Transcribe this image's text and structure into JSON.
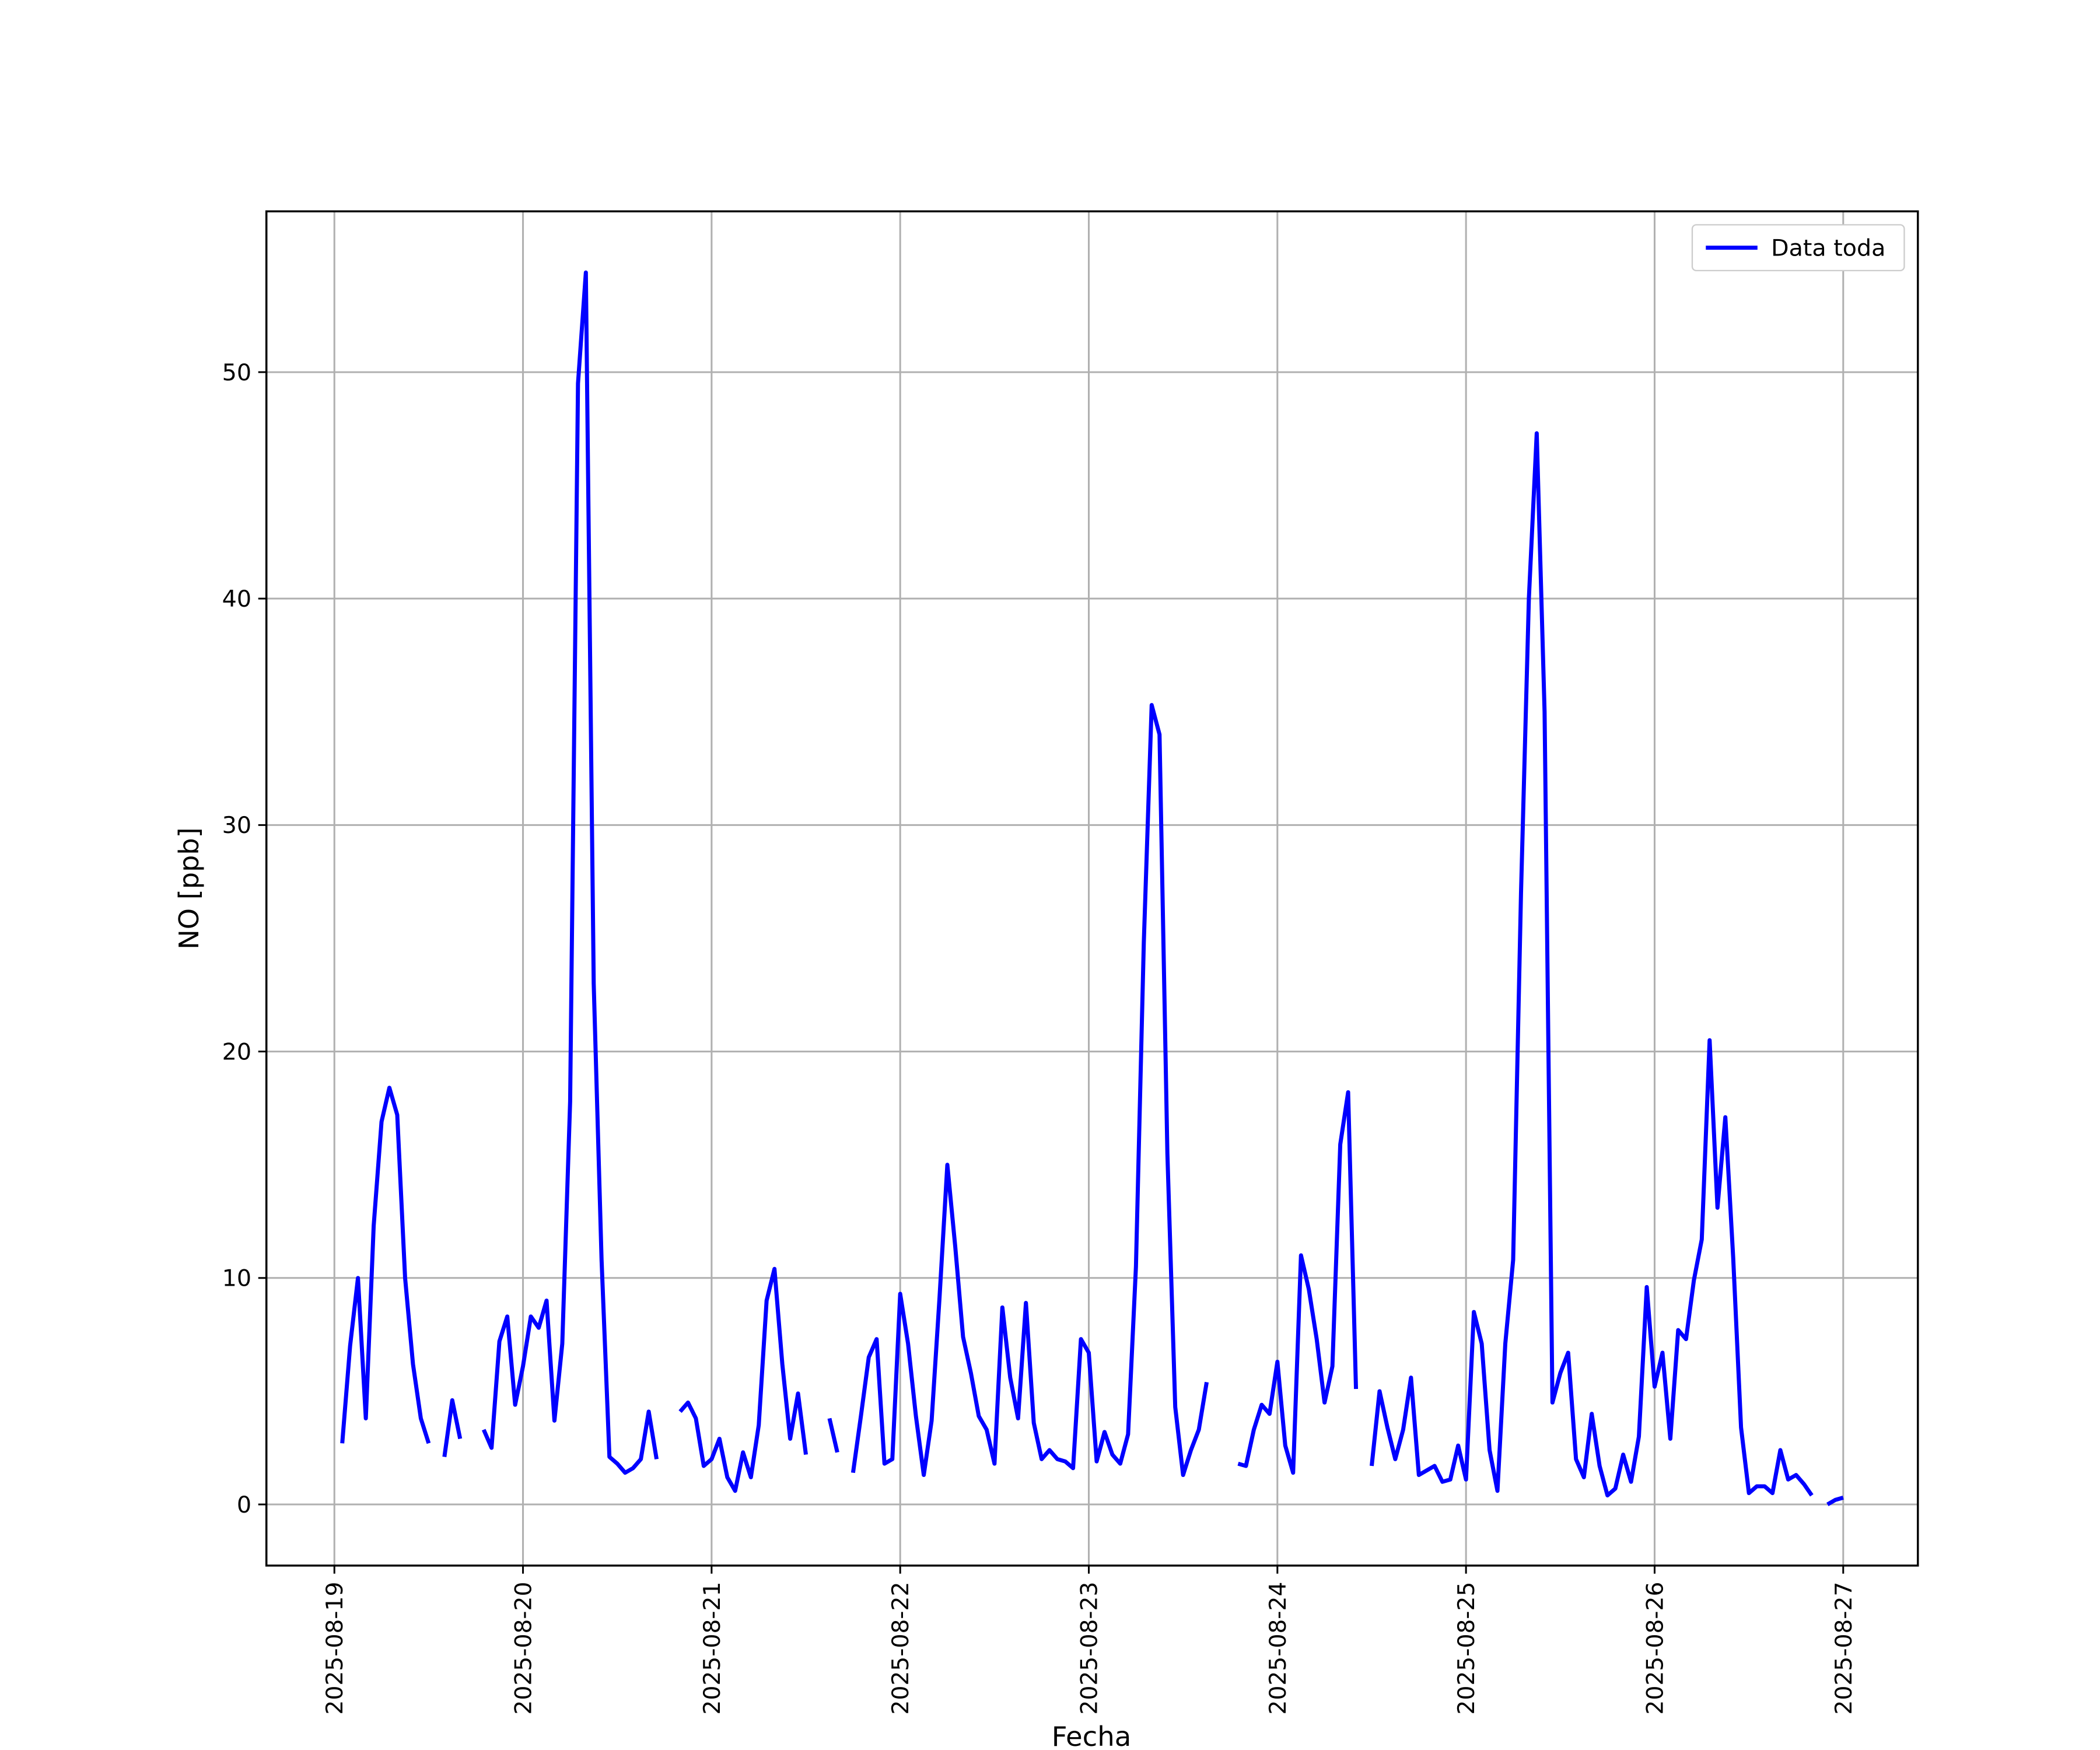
{
  "chart_data": {
    "type": "line",
    "xlabel": "Fecha",
    "ylabel": "NO [ppb]",
    "x": [
      "2025-08-19 01:00",
      "2025-08-19 02:00",
      "2025-08-19 03:00",
      "2025-08-19 04:00",
      "2025-08-19 05:00",
      "2025-08-19 06:00",
      "2025-08-19 07:00",
      "2025-08-19 08:00",
      "2025-08-19 09:00",
      "2025-08-19 10:00",
      "2025-08-19 11:00",
      "2025-08-19 12:00",
      "2025-08-19 13:00",
      "2025-08-19 14:00",
      "2025-08-19 15:00",
      "2025-08-19 16:00",
      "2025-08-19 17:00",
      "2025-08-19 18:00",
      "2025-08-19 19:00",
      "2025-08-19 20:00",
      "2025-08-19 21:00",
      "2025-08-19 22:00",
      "2025-08-19 23:00",
      "2025-08-20 00:00",
      "2025-08-20 01:00",
      "2025-08-20 02:00",
      "2025-08-20 03:00",
      "2025-08-20 04:00",
      "2025-08-20 05:00",
      "2025-08-20 06:00",
      "2025-08-20 07:00",
      "2025-08-20 08:00",
      "2025-08-20 09:00",
      "2025-08-20 10:00",
      "2025-08-20 11:00",
      "2025-08-20 12:00",
      "2025-08-20 13:00",
      "2025-08-20 14:00",
      "2025-08-20 15:00",
      "2025-08-20 16:00",
      "2025-08-20 17:00",
      "2025-08-20 18:00",
      "2025-08-20 19:00",
      "2025-08-20 20:00",
      "2025-08-20 21:00",
      "2025-08-20 22:00",
      "2025-08-20 23:00",
      "2025-08-21 00:00",
      "2025-08-21 01:00",
      "2025-08-21 02:00",
      "2025-08-21 03:00",
      "2025-08-21 04:00",
      "2025-08-21 05:00",
      "2025-08-21 06:00",
      "2025-08-21 07:00",
      "2025-08-21 08:00",
      "2025-08-21 09:00",
      "2025-08-21 10:00",
      "2025-08-21 11:00",
      "2025-08-21 12:00",
      "2025-08-21 13:00",
      "2025-08-21 14:00",
      "2025-08-21 15:00",
      "2025-08-21 16:00",
      "2025-08-21 17:00",
      "2025-08-21 18:00",
      "2025-08-21 19:00",
      "2025-08-21 20:00",
      "2025-08-21 21:00",
      "2025-08-21 22:00",
      "2025-08-21 23:00",
      "2025-08-22 00:00",
      "2025-08-22 01:00",
      "2025-08-22 02:00",
      "2025-08-22 03:00",
      "2025-08-22 04:00",
      "2025-08-22 05:00",
      "2025-08-22 06:00",
      "2025-08-22 07:00",
      "2025-08-22 08:00",
      "2025-08-22 09:00",
      "2025-08-22 10:00",
      "2025-08-22 11:00",
      "2025-08-22 12:00",
      "2025-08-22 13:00",
      "2025-08-22 14:00",
      "2025-08-22 15:00",
      "2025-08-22 16:00",
      "2025-08-22 17:00",
      "2025-08-22 18:00",
      "2025-08-22 19:00",
      "2025-08-22 20:00",
      "2025-08-22 21:00",
      "2025-08-22 22:00",
      "2025-08-22 23:00",
      "2025-08-23 00:00",
      "2025-08-23 01:00",
      "2025-08-23 02:00",
      "2025-08-23 03:00",
      "2025-08-23 04:00",
      "2025-08-23 05:00",
      "2025-08-23 06:00",
      "2025-08-23 07:00",
      "2025-08-23 08:00",
      "2025-08-23 09:00",
      "2025-08-23 10:00",
      "2025-08-23 11:00",
      "2025-08-23 12:00",
      "2025-08-23 13:00",
      "2025-08-23 14:00",
      "2025-08-23 15:00",
      "2025-08-23 16:00",
      "2025-08-23 17:00",
      "2025-08-23 18:00",
      "2025-08-23 19:00",
      "2025-08-23 20:00",
      "2025-08-23 21:00",
      "2025-08-23 22:00",
      "2025-08-23 23:00",
      "2025-08-24 00:00",
      "2025-08-24 01:00",
      "2025-08-24 02:00",
      "2025-08-24 03:00",
      "2025-08-24 04:00",
      "2025-08-24 05:00",
      "2025-08-24 06:00",
      "2025-08-24 07:00",
      "2025-08-24 08:00",
      "2025-08-24 09:00",
      "2025-08-24 10:00",
      "2025-08-24 11:00",
      "2025-08-24 12:00",
      "2025-08-24 13:00",
      "2025-08-24 14:00",
      "2025-08-24 15:00",
      "2025-08-24 16:00",
      "2025-08-24 17:00",
      "2025-08-24 18:00",
      "2025-08-24 19:00",
      "2025-08-24 20:00",
      "2025-08-24 21:00",
      "2025-08-24 22:00",
      "2025-08-24 23:00",
      "2025-08-25 00:00",
      "2025-08-25 01:00",
      "2025-08-25 02:00",
      "2025-08-25 03:00",
      "2025-08-25 04:00",
      "2025-08-25 05:00",
      "2025-08-25 06:00",
      "2025-08-25 07:00",
      "2025-08-25 08:00",
      "2025-08-25 09:00",
      "2025-08-25 10:00",
      "2025-08-25 11:00",
      "2025-08-25 12:00",
      "2025-08-25 13:00",
      "2025-08-25 14:00",
      "2025-08-25 15:00",
      "2025-08-25 16:00",
      "2025-08-25 17:00",
      "2025-08-25 18:00",
      "2025-08-25 19:00",
      "2025-08-25 20:00",
      "2025-08-25 21:00",
      "2025-08-25 22:00",
      "2025-08-25 23:00",
      "2025-08-26 00:00",
      "2025-08-26 01:00",
      "2025-08-26 02:00",
      "2025-08-26 03:00",
      "2025-08-26 04:00",
      "2025-08-26 05:00",
      "2025-08-26 06:00",
      "2025-08-26 07:00",
      "2025-08-26 08:00",
      "2025-08-26 09:00",
      "2025-08-26 10:00",
      "2025-08-26 11:00",
      "2025-08-26 12:00",
      "2025-08-26 13:00",
      "2025-08-26 14:00",
      "2025-08-26 15:00",
      "2025-08-26 16:00",
      "2025-08-26 17:00",
      "2025-08-26 18:00",
      "2025-08-26 19:00",
      "2025-08-26 20:00",
      "2025-08-26 21:00",
      "2025-08-26 22:00",
      "2025-08-26 23:00",
      "2025-08-27 00:00"
    ],
    "series": [
      {
        "name": "Data toda",
        "color": "#0000ff",
        "values": [
          2.7,
          7,
          10,
          3.8,
          12.3,
          16.9,
          18.4,
          17.2,
          10,
          6.2,
          3.8,
          2.7,
          null,
          2.1,
          4.6,
          2.9,
          null,
          null,
          3.3,
          2.5,
          7.2,
          8.3,
          4.4,
          6.1,
          8.3,
          7.8,
          9.0,
          3.7,
          7.1,
          17.8,
          49.5,
          54.4,
          23,
          10.8,
          2.1,
          1.8,
          1.4,
          1.6,
          2.0,
          4.1,
          2.0,
          null,
          null,
          4.1,
          4.5,
          3.8,
          1.7,
          2.0,
          2.9,
          1.2,
          0.6,
          2.3,
          1.2,
          3.5,
          9,
          10.4,
          6.2,
          2.9,
          4.9,
          2.2,
          null,
          null,
          3.8,
          2.3,
          null,
          1.4,
          3.9,
          6.5,
          7.3,
          1.8,
          2.0,
          9.3,
          7.1,
          3.9,
          1.3,
          3.7,
          9.1,
          15,
          11.4,
          7.4,
          5.8,
          3.9,
          3.3,
          1.8,
          8.7,
          5.6,
          3.8,
          8.9,
          3.6,
          2.0,
          2.4,
          2.0,
          1.9,
          1.6,
          7.3,
          6.7,
          1.9,
          3.2,
          2.2,
          1.8,
          3.1,
          10.5,
          24.8,
          35.3,
          34,
          15.5,
          4.3,
          1.3,
          2.4,
          3.3,
          5.4,
          null,
          null,
          null,
          1.8,
          1.7,
          3.3,
          4.4,
          4.0,
          6.3,
          2.6,
          1.4,
          11,
          9.5,
          7.3,
          4.5,
          6.1,
          15.9,
          18.2,
          5.1,
          null,
          1.7,
          5.0,
          3.4,
          2.0,
          3.3,
          5.6,
          1.3,
          1.5,
          1.7,
          1.0,
          1.1,
          2.6,
          1.1,
          8.5,
          7.1,
          2.4,
          0.6,
          7.1,
          10.8,
          27,
          40,
          47.3,
          35,
          4.5,
          5.8,
          6.7,
          2.0,
          1.2,
          4.0,
          1.7,
          0.4,
          0.7,
          2.2,
          1.0,
          3.0,
          9.6,
          5.2,
          6.7,
          2.9,
          7.7,
          7.3,
          9.9,
          11.7,
          20.5,
          13.1,
          17.1,
          10.9,
          3.4,
          0.5,
          0.8,
          0.8,
          0.5,
          2.4,
          1.1,
          1.3,
          0.9,
          0.4,
          null,
          0.0,
          0.2,
          0.3
        ]
      }
    ],
    "xlim": [
      "2025-08-18 15:21",
      "2025-08-27 09:30"
    ],
    "xticks": [
      "2025-08-19",
      "2025-08-20",
      "2025-08-21",
      "2025-08-22",
      "2025-08-23",
      "2025-08-24",
      "2025-08-25",
      "2025-08-26",
      "2025-08-27"
    ],
    "ylim": [
      -2.7,
      57.1
    ],
    "yticks": [
      0,
      10,
      20,
      30,
      40,
      50
    ],
    "grid": true,
    "legend": "upper right"
  }
}
